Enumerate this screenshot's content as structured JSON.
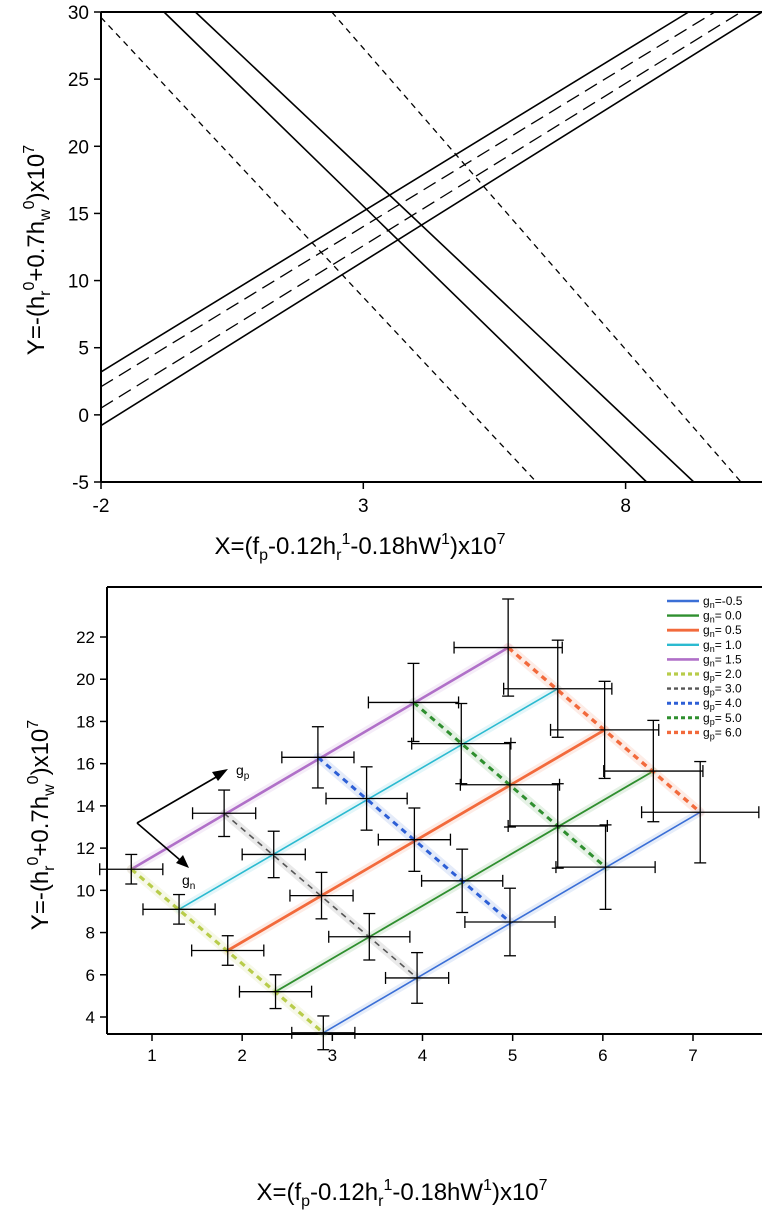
{
  "chart_data": [
    {
      "type": "line",
      "title": "",
      "xlabel": "X=(f_p-0.12h_r^1-0.18hW^1)x10^7",
      "ylabel": "Y=-(h_r^0+0.7h_w^0)x10^7",
      "xlim": [
        -2,
        10.6
      ],
      "ylim": [
        -5,
        30
      ],
      "x_ticks": [
        "-2",
        "3",
        "8"
      ],
      "y_ticks": [
        "-5",
        "0",
        "5",
        "10",
        "15",
        "20",
        "25",
        "30"
      ],
      "grid": false,
      "series": [
        {
          "style": "solid",
          "points": [
            [
              -2,
              3.2
            ],
            [
              9.2,
              30
            ]
          ]
        },
        {
          "style": "solid",
          "points": [
            [
              -2,
              -0.8
            ],
            [
              10.6,
              30
            ]
          ]
        },
        {
          "style": "dashed",
          "points": [
            [
              -2,
              2.1
            ],
            [
              9.7,
              30
            ]
          ]
        },
        {
          "style": "dashed",
          "points": [
            [
              -2,
              0.5
            ],
            [
              10.2,
              30
            ]
          ]
        },
        {
          "style": "solid",
          "points": [
            [
              -0.8,
              30
            ],
            [
              8.4,
              -5
            ]
          ]
        },
        {
          "style": "solid",
          "points": [
            [
              -0.2,
              30
            ],
            [
              9.3,
              -5
            ]
          ]
        },
        {
          "style": "dotted",
          "points": [
            [
              -2,
              29.6
            ],
            [
              6.3,
              -5
            ]
          ]
        },
        {
          "style": "dotted",
          "points": [
            [
              2.4,
              30
            ],
            [
              10.2,
              -5
            ]
          ]
        }
      ]
    },
    {
      "type": "line",
      "title": "",
      "xlabel": "X=(f_p-0.12h_r^1-0.18hW^1)x10^7",
      "ylabel": "Y=-(h_r^0+0.7h_w^0)x10^7",
      "xlim": [
        0.5,
        7.8
      ],
      "ylim": [
        2.7,
        23.7
      ],
      "x_ticks": [
        "1",
        "2",
        "3",
        "4",
        "5",
        "6",
        "7"
      ],
      "y_ticks": [
        "4",
        "6",
        "8",
        "10",
        "12",
        "14",
        "16",
        "18",
        "20",
        "22"
      ],
      "grid": false,
      "legend_position": "top-right",
      "points": [
        {
          "x": 0.77,
          "y": 11.0,
          "xerr": 0.35,
          "yerr": 0.7
        },
        {
          "x": 1.3,
          "y": 9.1,
          "xerr": 0.4,
          "yerr": 0.7
        },
        {
          "x": 1.84,
          "y": 7.15,
          "xerr": 0.4,
          "yerr": 0.7
        },
        {
          "x": 2.37,
          "y": 5.2,
          "xerr": 0.4,
          "yerr": 0.8
        },
        {
          "x": 2.9,
          "y": 3.25,
          "xerr": 0.35,
          "yerr": 0.8
        },
        {
          "x": 1.8,
          "y": 13.65,
          "xerr": 0.35,
          "yerr": 1.1
        },
        {
          "x": 2.35,
          "y": 11.7,
          "xerr": 0.35,
          "yerr": 1.1
        },
        {
          "x": 2.88,
          "y": 9.75,
          "xerr": 0.35,
          "yerr": 1.1
        },
        {
          "x": 3.41,
          "y": 7.8,
          "xerr": 0.45,
          "yerr": 1.1
        },
        {
          "x": 3.94,
          "y": 5.85,
          "xerr": 0.35,
          "yerr": 1.2
        },
        {
          "x": 2.84,
          "y": 16.3,
          "xerr": 0.4,
          "yerr": 1.45
        },
        {
          "x": 3.38,
          "y": 14.35,
          "xerr": 0.45,
          "yerr": 1.5
        },
        {
          "x": 3.91,
          "y": 12.4,
          "xerr": 0.4,
          "yerr": 1.5
        },
        {
          "x": 4.44,
          "y": 10.45,
          "xerr": 0.45,
          "yerr": 1.5
        },
        {
          "x": 4.97,
          "y": 8.5,
          "xerr": 0.5,
          "yerr": 1.6
        },
        {
          "x": 3.9,
          "y": 18.9,
          "xerr": 0.5,
          "yerr": 1.85
        },
        {
          "x": 4.43,
          "y": 16.95,
          "xerr": 0.55,
          "yerr": 1.9
        },
        {
          "x": 4.97,
          "y": 15.0,
          "xerr": 0.55,
          "yerr": 2.0
        },
        {
          "x": 5.5,
          "y": 13.05,
          "xerr": 0.55,
          "yerr": 2.0
        },
        {
          "x": 6.03,
          "y": 11.1,
          "xerr": 0.55,
          "yerr": 2.0
        },
        {
          "x": 4.95,
          "y": 21.5,
          "xerr": 0.6,
          "yerr": 2.3
        },
        {
          "x": 5.5,
          "y": 19.55,
          "xerr": 0.6,
          "yerr": 2.3
        },
        {
          "x": 6.02,
          "y": 17.6,
          "xerr": 0.6,
          "yerr": 2.3
        },
        {
          "x": 6.56,
          "y": 15.65,
          "xerr": 0.55,
          "yerr": 2.4
        },
        {
          "x": 7.08,
          "y": 13.7,
          "xerr": 0.65,
          "yerr": 2.4
        }
      ],
      "series": [
        {
          "name": "g_n=-0.5",
          "color": "#3b6fd6",
          "style": "solid",
          "width": 1.6,
          "points": [
            [
              2.9,
              3.25
            ],
            [
              7.08,
              13.7
            ]
          ]
        },
        {
          "name": "g_n= 0.0",
          "color": "#2f8f2f",
          "style": "solid",
          "width": 1.8,
          "points": [
            [
              2.37,
              5.2
            ],
            [
              6.56,
              15.65
            ]
          ]
        },
        {
          "name": "g_n= 0.5",
          "color": "#f26a3c",
          "style": "solid",
          "width": 2.8,
          "points": [
            [
              1.84,
              7.15
            ],
            [
              6.02,
              17.6
            ]
          ]
        },
        {
          "name": "g_n= 1.0",
          "color": "#2bbad0",
          "style": "solid",
          "width": 1.6,
          "points": [
            [
              1.3,
              9.1
            ],
            [
              5.5,
              19.55
            ]
          ]
        },
        {
          "name": "g_n= 1.5",
          "color": "#b070c8",
          "style": "solid",
          "width": 2.6,
          "points": [
            [
              0.77,
              11.0
            ],
            [
              4.95,
              21.5
            ]
          ]
        },
        {
          "name": "g_p= 2.0",
          "color": "#b8cc4a",
          "style": "dotted",
          "width": 3.2,
          "points": [
            [
              0.77,
              11.0
            ],
            [
              2.9,
              3.25
            ]
          ]
        },
        {
          "name": "g_p= 3.0",
          "color": "#555555",
          "style": "dotted",
          "width": 1.6,
          "points": [
            [
              1.8,
              13.65
            ],
            [
              3.94,
              5.85
            ]
          ]
        },
        {
          "name": "g_p= 4.0",
          "color": "#2d5fd6",
          "style": "dotted",
          "width": 3.0,
          "points": [
            [
              2.84,
              16.3
            ],
            [
              4.97,
              8.5
            ]
          ]
        },
        {
          "name": "g_p= 5.0",
          "color": "#2f8f2f",
          "style": "dotted",
          "width": 3.0,
          "points": [
            [
              3.9,
              18.9
            ],
            [
              6.03,
              11.1
            ]
          ]
        },
        {
          "name": "g_p= 6.0",
          "color": "#f26a3c",
          "style": "dotted",
          "width": 3.4,
          "points": [
            [
              4.95,
              21.5
            ],
            [
              7.08,
              13.7
            ]
          ]
        }
      ],
      "annotations": [
        {
          "label": "g_p",
          "direction": "up-right"
        },
        {
          "label": "g_n",
          "direction": "down-right"
        }
      ]
    }
  ]
}
